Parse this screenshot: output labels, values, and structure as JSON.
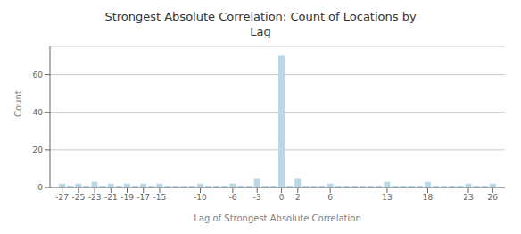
{
  "chart_data": {
    "type": "bar",
    "title": "Strongest Absolute Correlation: Count of Locations by\nLag",
    "x_label": "Lag of Strongest Absolute Correlation",
    "y_label": "Count",
    "x": [
      -27,
      -26,
      -25,
      -24,
      -23,
      -22,
      -21,
      -20,
      -19,
      -18,
      -17,
      -16,
      -15,
      -14,
      -13,
      -12,
      -11,
      -10,
      -9,
      -8,
      -7,
      -6,
      -5,
      -4,
      -3,
      -2,
      -1,
      0,
      1,
      2,
      3,
      4,
      5,
      6,
      7,
      8,
      9,
      10,
      11,
      12,
      13,
      14,
      15,
      16,
      17,
      18,
      19,
      20,
      21,
      22,
      23,
      24,
      25,
      26
    ],
    "values": [
      2,
      1,
      2,
      1,
      3,
      1,
      2,
      1,
      2,
      1,
      2,
      1,
      2,
      1,
      1,
      1,
      1,
      2,
      1,
      1,
      1,
      2,
      1,
      1,
      5,
      1,
      1,
      70,
      1,
      5,
      1,
      1,
      1,
      2,
      1,
      1,
      1,
      1,
      1,
      1,
      3,
      1,
      1,
      1,
      1,
      3,
      1,
      1,
      1,
      1,
      2,
      1,
      1,
      2
    ],
    "color": "#b8d8e8",
    "xlim": [
      -28.5,
      27.5
    ],
    "xticks": [
      -27,
      -25,
      -23,
      -21,
      -19,
      -17,
      -15,
      -10,
      -6,
      -3,
      0,
      2,
      6,
      13,
      18,
      23,
      26
    ],
    "ylim": [
      0,
      75
    ],
    "yticks": [
      0,
      20,
      40,
      60
    ],
    "grid": true
  }
}
